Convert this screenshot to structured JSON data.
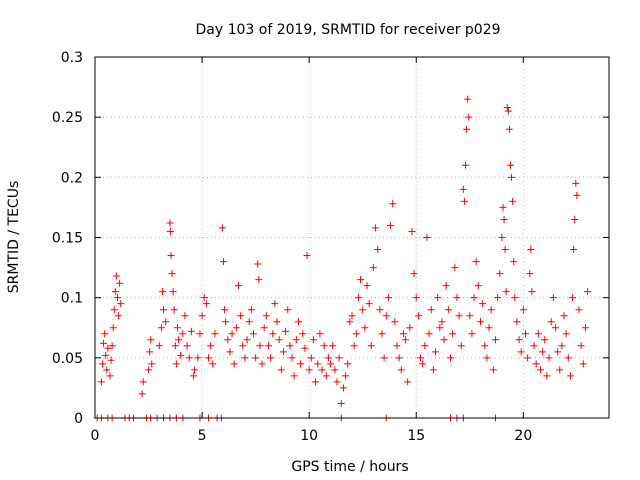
{
  "chart_data": {
    "type": "scatter",
    "title": "Day 103 of 2019, SRMTID for receiver p029",
    "xlabel": "GPS time / hours",
    "ylabel": "SRMTID / TECUs",
    "xlim": [
      0,
      24
    ],
    "ylim": [
      0,
      0.3
    ],
    "xticks": [
      0,
      5,
      10,
      15,
      20
    ],
    "xtick_labels": [
      "0",
      "5",
      "10",
      "15",
      "20"
    ],
    "yticks": [
      0,
      0.05,
      0.1,
      0.15,
      0.2,
      0.25,
      0.3
    ],
    "ytick_labels": [
      "0",
      "0.05",
      "0.1",
      "0.15",
      "0.2",
      "0.25",
      "0.3"
    ],
    "grid": true,
    "marker": "+",
    "color": "#ff0000",
    "series": [
      {
        "name": "SRMTID",
        "points": [
          [
            0.1,
            0.0
          ],
          [
            0.3,
            0.0
          ],
          [
            0.6,
            0.0
          ],
          [
            0.8,
            0.0
          ],
          [
            1.4,
            0.0
          ],
          [
            1.6,
            0.0
          ],
          [
            1.8,
            0.0
          ],
          [
            2.4,
            0.0
          ],
          [
            2.6,
            0.0
          ],
          [
            2.9,
            0.0
          ],
          [
            3.2,
            0.0
          ],
          [
            3.5,
            0.0
          ],
          [
            3.8,
            0.0
          ],
          [
            4.1,
            0.0
          ],
          [
            4.9,
            0.0
          ],
          [
            5.3,
            0.0
          ],
          [
            5.7,
            0.0
          ],
          [
            5.9,
            0.0
          ],
          [
            11.5,
            0.0
          ],
          [
            13.6,
            0.0
          ],
          [
            16.6,
            0.0
          ],
          [
            16.9,
            0.0
          ],
          [
            17.2,
            0.0
          ],
          [
            18.7,
            0.0
          ],
          [
            0.3,
            0.03
          ],
          [
            0.35,
            0.045
          ],
          [
            0.4,
            0.062
          ],
          [
            0.45,
            0.07
          ],
          [
            0.5,
            0.052
          ],
          [
            0.55,
            0.04
          ],
          [
            0.6,
            0.058
          ],
          [
            0.7,
            0.035
          ],
          [
            0.75,
            0.048
          ],
          [
            0.8,
            0.06
          ],
          [
            0.85,
            0.075
          ],
          [
            0.9,
            0.09
          ],
          [
            0.95,
            0.105
          ],
          [
            1.0,
            0.118
          ],
          [
            1.05,
            0.1
          ],
          [
            1.1,
            0.085
          ],
          [
            1.15,
            0.112
          ],
          [
            1.2,
            0.095
          ],
          [
            2.2,
            0.02
          ],
          [
            2.25,
            0.03
          ],
          [
            2.5,
            0.04
          ],
          [
            2.55,
            0.055
          ],
          [
            2.6,
            0.065
          ],
          [
            2.65,
            0.045
          ],
          [
            3.0,
            0.06
          ],
          [
            3.1,
            0.075
          ],
          [
            3.15,
            0.105
          ],
          [
            3.2,
            0.09
          ],
          [
            3.3,
            0.08
          ],
          [
            3.5,
            0.162
          ],
          [
            3.52,
            0.155
          ],
          [
            3.55,
            0.135
          ],
          [
            3.6,
            0.12
          ],
          [
            3.65,
            0.105
          ],
          [
            3.7,
            0.09
          ],
          [
            3.75,
            0.06
          ],
          [
            3.8,
            0.045
          ],
          [
            3.85,
            0.075
          ],
          [
            3.9,
            0.065
          ],
          [
            4.0,
            0.052
          ],
          [
            4.1,
            0.07
          ],
          [
            4.2,
            0.085
          ],
          [
            4.3,
            0.06
          ],
          [
            4.4,
            0.05
          ],
          [
            4.5,
            0.072
          ],
          [
            4.6,
            0.035
          ],
          [
            4.65,
            0.04
          ],
          [
            4.8,
            0.05
          ],
          [
            4.9,
            0.07
          ],
          [
            5.0,
            0.085
          ],
          [
            5.1,
            0.1
          ],
          [
            5.2,
            0.095
          ],
          [
            5.3,
            0.05
          ],
          [
            5.4,
            0.06
          ],
          [
            5.5,
            0.045
          ],
          [
            5.6,
            0.07
          ],
          [
            5.95,
            0.158
          ],
          [
            6.0,
            0.13
          ],
          [
            6.05,
            0.09
          ],
          [
            6.1,
            0.08
          ],
          [
            6.2,
            0.065
          ],
          [
            6.3,
            0.055
          ],
          [
            6.4,
            0.07
          ],
          [
            6.5,
            0.045
          ],
          [
            6.6,
            0.075
          ],
          [
            6.7,
            0.11
          ],
          [
            6.8,
            0.085
          ],
          [
            6.9,
            0.06
          ],
          [
            7.0,
            0.05
          ],
          [
            7.1,
            0.065
          ],
          [
            7.2,
            0.08
          ],
          [
            7.3,
            0.09
          ],
          [
            7.4,
            0.07
          ],
          [
            7.5,
            0.05
          ],
          [
            7.6,
            0.128
          ],
          [
            7.65,
            0.115
          ],
          [
            7.7,
            0.06
          ],
          [
            7.8,
            0.045
          ],
          [
            7.9,
            0.075
          ],
          [
            8.0,
            0.085
          ],
          [
            8.1,
            0.06
          ],
          [
            8.2,
            0.05
          ],
          [
            8.3,
            0.07
          ],
          [
            8.4,
            0.095
          ],
          [
            8.5,
            0.08
          ],
          [
            8.6,
            0.065
          ],
          [
            8.7,
            0.04
          ],
          [
            8.8,
            0.055
          ],
          [
            8.9,
            0.072
          ],
          [
            9.0,
            0.09
          ],
          [
            9.1,
            0.06
          ],
          [
            9.2,
            0.05
          ],
          [
            9.3,
            0.035
          ],
          [
            9.4,
            0.065
          ],
          [
            9.5,
            0.08
          ],
          [
            9.6,
            0.045
          ],
          [
            9.7,
            0.07
          ],
          [
            9.8,
            0.058
          ],
          [
            9.9,
            0.135
          ],
          [
            10.0,
            0.04
          ],
          [
            10.1,
            0.05
          ],
          [
            10.2,
            0.065
          ],
          [
            10.3,
            0.03
          ],
          [
            10.4,
            0.045
          ],
          [
            10.5,
            0.07
          ],
          [
            10.6,
            0.04
          ],
          [
            10.7,
            0.06
          ],
          [
            10.8,
            0.035
          ],
          [
            10.9,
            0.05
          ],
          [
            11.0,
            0.045
          ],
          [
            11.1,
            0.06
          ],
          [
            11.2,
            0.04
          ],
          [
            11.3,
            0.03
          ],
          [
            11.4,
            0.05
          ],
          [
            11.5,
            0.012
          ],
          [
            11.6,
            0.025
          ],
          [
            11.7,
            0.035
          ],
          [
            11.8,
            0.045
          ],
          [
            11.9,
            0.08
          ],
          [
            12.0,
            0.085
          ],
          [
            12.1,
            0.06
          ],
          [
            12.2,
            0.07
          ],
          [
            12.3,
            0.1
          ],
          [
            12.4,
            0.115
          ],
          [
            12.5,
            0.09
          ],
          [
            12.6,
            0.075
          ],
          [
            12.7,
            0.11
          ],
          [
            12.8,
            0.095
          ],
          [
            12.9,
            0.06
          ],
          [
            13.0,
            0.125
          ],
          [
            13.1,
            0.158
          ],
          [
            13.2,
            0.14
          ],
          [
            13.3,
            0.09
          ],
          [
            13.4,
            0.07
          ],
          [
            13.5,
            0.05
          ],
          [
            13.6,
            0.085
          ],
          [
            13.7,
            0.1
          ],
          [
            13.8,
            0.16
          ],
          [
            13.9,
            0.178
          ],
          [
            14.0,
            0.08
          ],
          [
            14.1,
            0.06
          ],
          [
            14.2,
            0.05
          ],
          [
            14.3,
            0.04
          ],
          [
            14.4,
            0.07
          ],
          [
            14.5,
            0.065
          ],
          [
            14.6,
            0.03
          ],
          [
            14.7,
            0.075
          ],
          [
            14.8,
            0.155
          ],
          [
            14.9,
            0.12
          ],
          [
            15.0,
            0.1
          ],
          [
            15.1,
            0.085
          ],
          [
            15.2,
            0.05
          ],
          [
            15.3,
            0.045
          ],
          [
            15.4,
            0.06
          ],
          [
            15.5,
            0.15
          ],
          [
            15.6,
            0.07
          ],
          [
            15.7,
            0.09
          ],
          [
            15.8,
            0.04
          ],
          [
            15.9,
            0.055
          ],
          [
            16.0,
            0.1
          ],
          [
            16.1,
            0.075
          ],
          [
            16.2,
            0.08
          ],
          [
            16.3,
            0.065
          ],
          [
            16.4,
            0.11
          ],
          [
            16.5,
            0.09
          ],
          [
            16.6,
            0.05
          ],
          [
            16.7,
            0.07
          ],
          [
            16.8,
            0.125
          ],
          [
            16.9,
            0.1
          ],
          [
            17.0,
            0.085
          ],
          [
            17.1,
            0.06
          ],
          [
            17.2,
            0.19
          ],
          [
            17.25,
            0.18
          ],
          [
            17.3,
            0.21
          ],
          [
            17.35,
            0.24
          ],
          [
            17.4,
            0.265
          ],
          [
            17.45,
            0.25
          ],
          [
            17.5,
            0.085
          ],
          [
            17.6,
            0.07
          ],
          [
            17.7,
            0.1
          ],
          [
            17.8,
            0.13
          ],
          [
            17.9,
            0.11
          ],
          [
            18.0,
            0.08
          ],
          [
            18.1,
            0.095
          ],
          [
            18.2,
            0.06
          ],
          [
            18.3,
            0.05
          ],
          [
            18.4,
            0.075
          ],
          [
            18.5,
            0.09
          ],
          [
            18.6,
            0.04
          ],
          [
            18.7,
            0.065
          ],
          [
            18.8,
            0.1
          ],
          [
            18.9,
            0.12
          ],
          [
            19.0,
            0.15
          ],
          [
            19.05,
            0.175
          ],
          [
            19.1,
            0.165
          ],
          [
            19.15,
            0.14
          ],
          [
            19.2,
            0.105
          ],
          [
            19.25,
            0.258
          ],
          [
            19.3,
            0.255
          ],
          [
            19.35,
            0.24
          ],
          [
            19.4,
            0.21
          ],
          [
            19.45,
            0.2
          ],
          [
            19.5,
            0.18
          ],
          [
            19.55,
            0.13
          ],
          [
            19.6,
            0.1
          ],
          [
            19.7,
            0.08
          ],
          [
            19.8,
            0.065
          ],
          [
            19.9,
            0.055
          ],
          [
            20.0,
            0.09
          ],
          [
            20.1,
            0.07
          ],
          [
            20.2,
            0.05
          ],
          [
            20.3,
            0.12
          ],
          [
            20.35,
            0.14
          ],
          [
            20.4,
            0.105
          ],
          [
            20.5,
            0.06
          ],
          [
            20.6,
            0.045
          ],
          [
            20.7,
            0.07
          ],
          [
            20.8,
            0.04
          ],
          [
            20.9,
            0.055
          ],
          [
            21.0,
            0.065
          ],
          [
            21.1,
            0.035
          ],
          [
            21.2,
            0.05
          ],
          [
            21.3,
            0.08
          ],
          [
            21.4,
            0.1
          ],
          [
            21.5,
            0.075
          ],
          [
            21.6,
            0.055
          ],
          [
            21.7,
            0.04
          ],
          [
            21.8,
            0.06
          ],
          [
            21.9,
            0.085
          ],
          [
            22.0,
            0.07
          ],
          [
            22.1,
            0.05
          ],
          [
            22.2,
            0.035
          ],
          [
            22.3,
            0.1
          ],
          [
            22.35,
            0.14
          ],
          [
            22.4,
            0.165
          ],
          [
            22.45,
            0.195
          ],
          [
            22.5,
            0.185
          ],
          [
            22.6,
            0.09
          ],
          [
            22.7,
            0.06
          ],
          [
            22.8,
            0.045
          ],
          [
            22.9,
            0.075
          ],
          [
            23.0,
            0.105
          ]
        ]
      }
    ]
  }
}
